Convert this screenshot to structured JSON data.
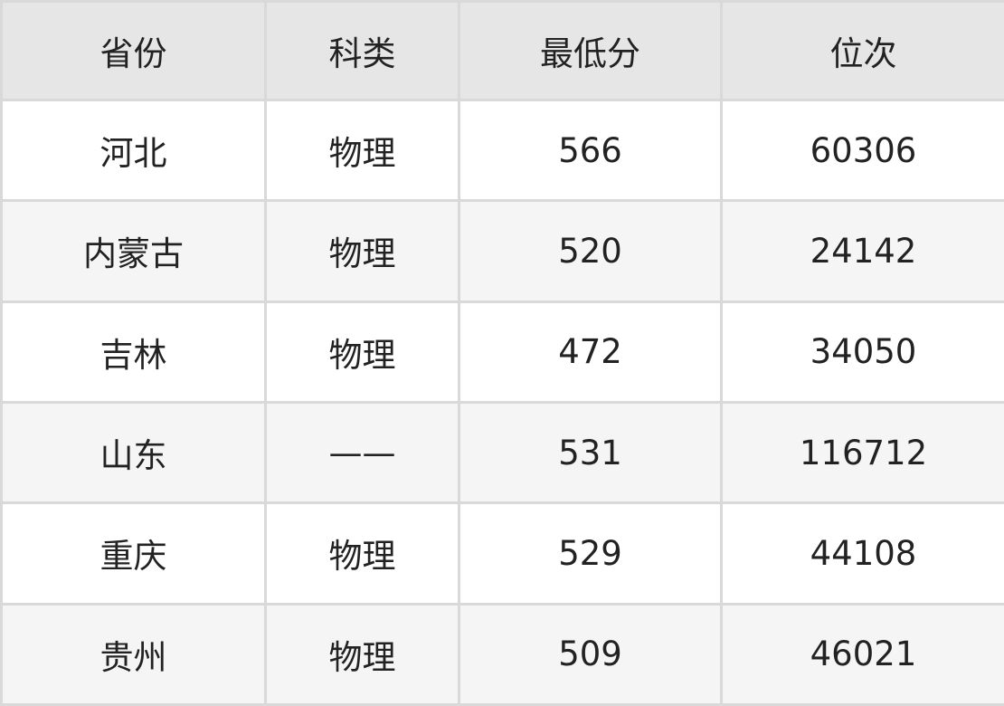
{
  "table": {
    "headers": [
      "省份",
      "科类",
      "最低分",
      "位次"
    ],
    "rows": [
      [
        "河北",
        "物理",
        "566",
        "60306"
      ],
      [
        "内蒙古",
        "物理",
        "520",
        "24142"
      ],
      [
        "吉林",
        "物理",
        "472",
        "34050"
      ],
      [
        "山东",
        "——",
        "531",
        "116712"
      ],
      [
        "重庆",
        "物理",
        "529",
        "44108"
      ],
      [
        "贵州",
        "物理",
        "509",
        "46021"
      ]
    ]
  },
  "colors": {
    "header_bg": "#e6e6e6",
    "alt_row_bg": "#f5f5f5",
    "border": "#d9d9d9",
    "text": "#222222"
  }
}
